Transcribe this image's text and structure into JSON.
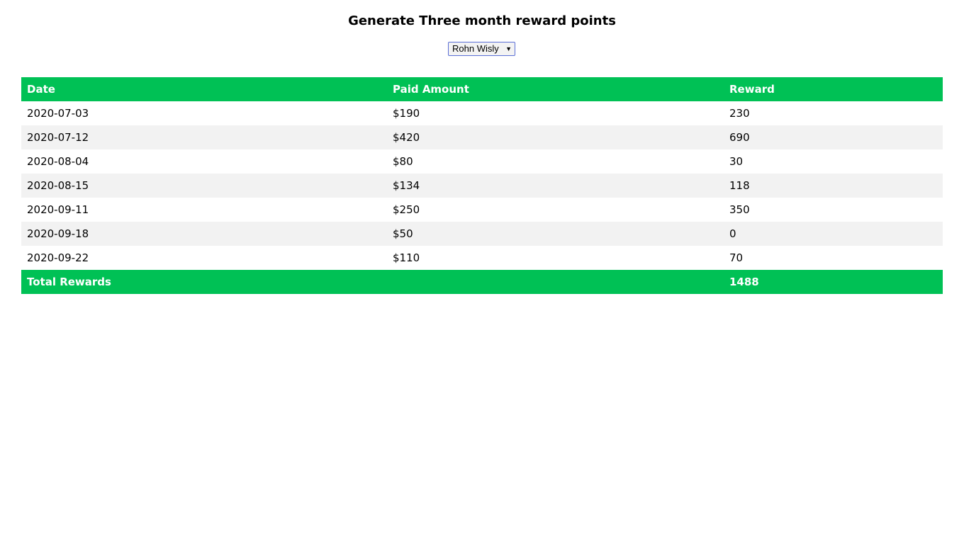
{
  "page": {
    "title": "Generate Three month reward points"
  },
  "customer_select": {
    "selected": "Rohn Wisly",
    "arrow_icon": "triangle-down-icon"
  },
  "table": {
    "headers": {
      "date": "Date",
      "paid_amount": "Paid Amount",
      "reward": "Reward"
    },
    "rows": [
      {
        "date": "2020-07-03",
        "paid_amount": "$190",
        "reward": "230"
      },
      {
        "date": "2020-07-12",
        "paid_amount": "$420",
        "reward": "690"
      },
      {
        "date": "2020-08-04",
        "paid_amount": "$80",
        "reward": "30"
      },
      {
        "date": "2020-08-15",
        "paid_amount": "$134",
        "reward": "118"
      },
      {
        "date": "2020-09-11",
        "paid_amount": "$250",
        "reward": "350"
      },
      {
        "date": "2020-09-18",
        "paid_amount": "$50",
        "reward": "0"
      },
      {
        "date": "2020-09-22",
        "paid_amount": "$110",
        "reward": "70"
      }
    ],
    "total": {
      "label": "Total Rewards",
      "value": "1488"
    }
  },
  "colors": {
    "header_green": "#00c155",
    "stripe_gray": "#f2f2f2"
  }
}
